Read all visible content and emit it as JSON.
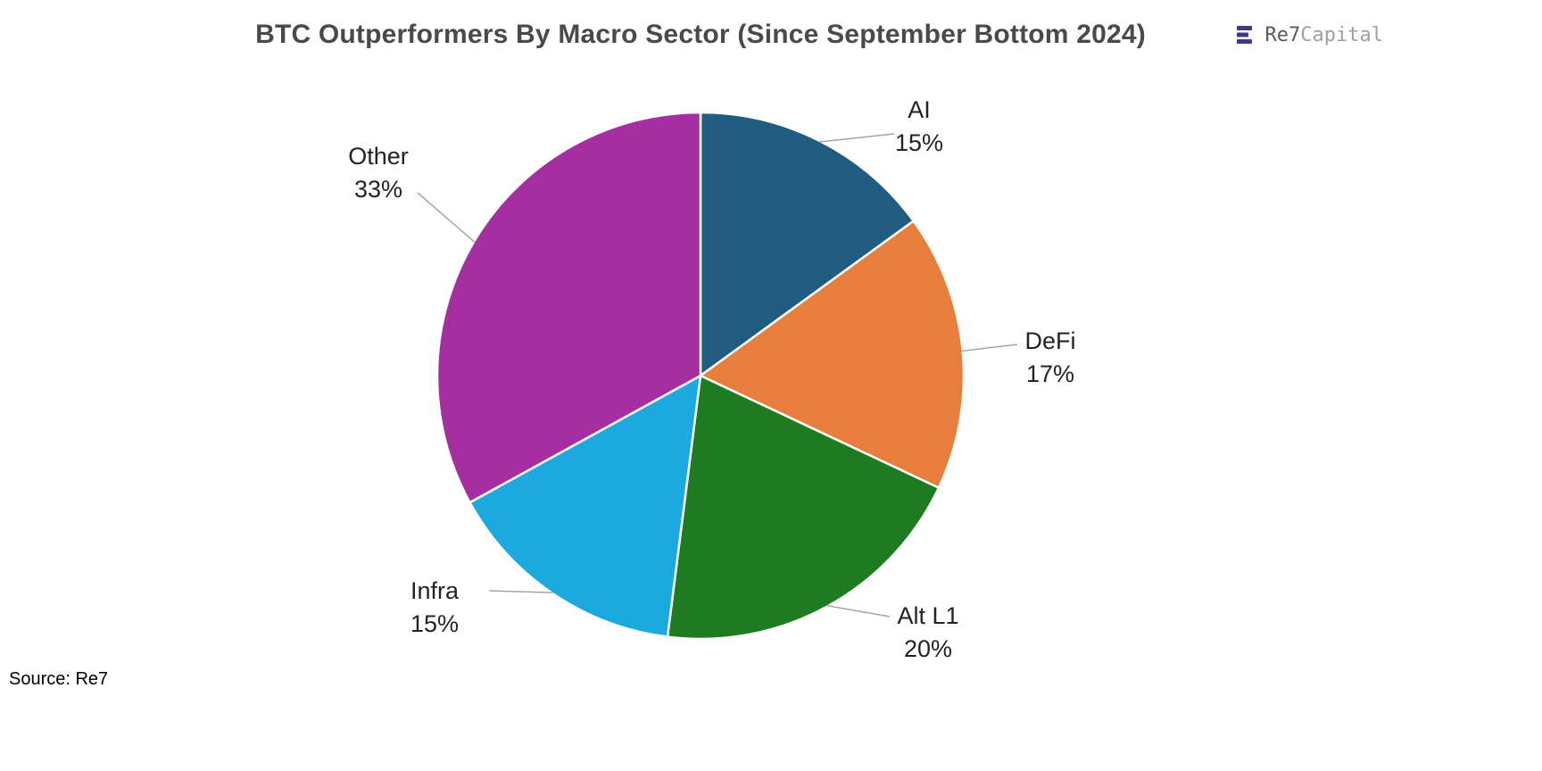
{
  "header": {
    "title": "BTC Outperformers By Macro Sector (Since September Bottom 2024)",
    "logo": {
      "icon": "re7-bars-icon",
      "icon_color": "#3d3a88",
      "name": "Re7",
      "suffix": "Capital"
    }
  },
  "footer": {
    "source_label": "Source: Re7"
  },
  "chart_data": {
    "type": "pie",
    "title": "BTC Outperformers By Macro Sector (Since September Bottom 2024)",
    "labels": [
      "AI",
      "DeFi",
      "Alt L1",
      "Infra",
      "Other"
    ],
    "values": [
      15,
      17,
      20,
      15,
      33
    ],
    "value_labels": [
      "15%",
      "17%",
      "20%",
      "15%",
      "33%"
    ],
    "colors": [
      "#1f5c80",
      "#e87e3c",
      "#1e7b21",
      "#1ca9e0",
      "#a62ea0"
    ],
    "slice_border_color": "#ffffff",
    "leader_line_color": "#a6a6a6",
    "start_angle_deg": 0,
    "direction": "clockwise",
    "legend_position": "none",
    "label_style": "outside labels with leader lines, category name above percentage"
  }
}
